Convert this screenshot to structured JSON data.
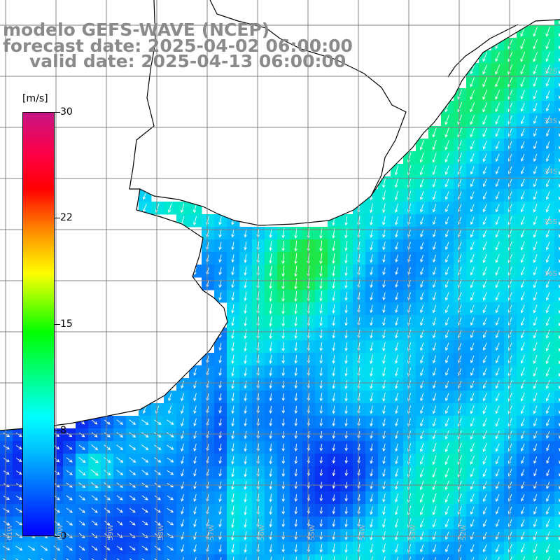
{
  "title": {
    "line1": "modelo GEFS-WAVE (NCEP)",
    "line2": "forecast date: 2025-04-02 06:00:00",
    "line3": "valid date: 2025-04-13 06:00:00"
  },
  "colorbar": {
    "unit": "[m/s]",
    "ticks": [
      "30",
      "22",
      "15",
      "8",
      "0"
    ],
    "tick_values": [
      30,
      22,
      15,
      8,
      0
    ],
    "range": [
      0,
      30
    ],
    "colors": [
      "#0000ff",
      "#00bfff",
      "#00ffff",
      "#00ff00",
      "#ffff00",
      "#ff8c00",
      "#ff0000",
      "#c71585"
    ]
  },
  "map": {
    "lat_labels": [
      "32S",
      "33S",
      "34S",
      "35S",
      "36S"
    ],
    "lon_labels": [
      "61W",
      "60W",
      "59W",
      "58W",
      "57W",
      "56W",
      "55W",
      "54W",
      "53W",
      "52W"
    ],
    "colors": {
      "land": "#ffffff",
      "coast": "#000000",
      "grid": "#808080",
      "arrow": "#ffffff",
      "wind_low": "#0a58f0",
      "wind_mid": "#00d8f0",
      "wind_high": "#10e890"
    }
  }
}
